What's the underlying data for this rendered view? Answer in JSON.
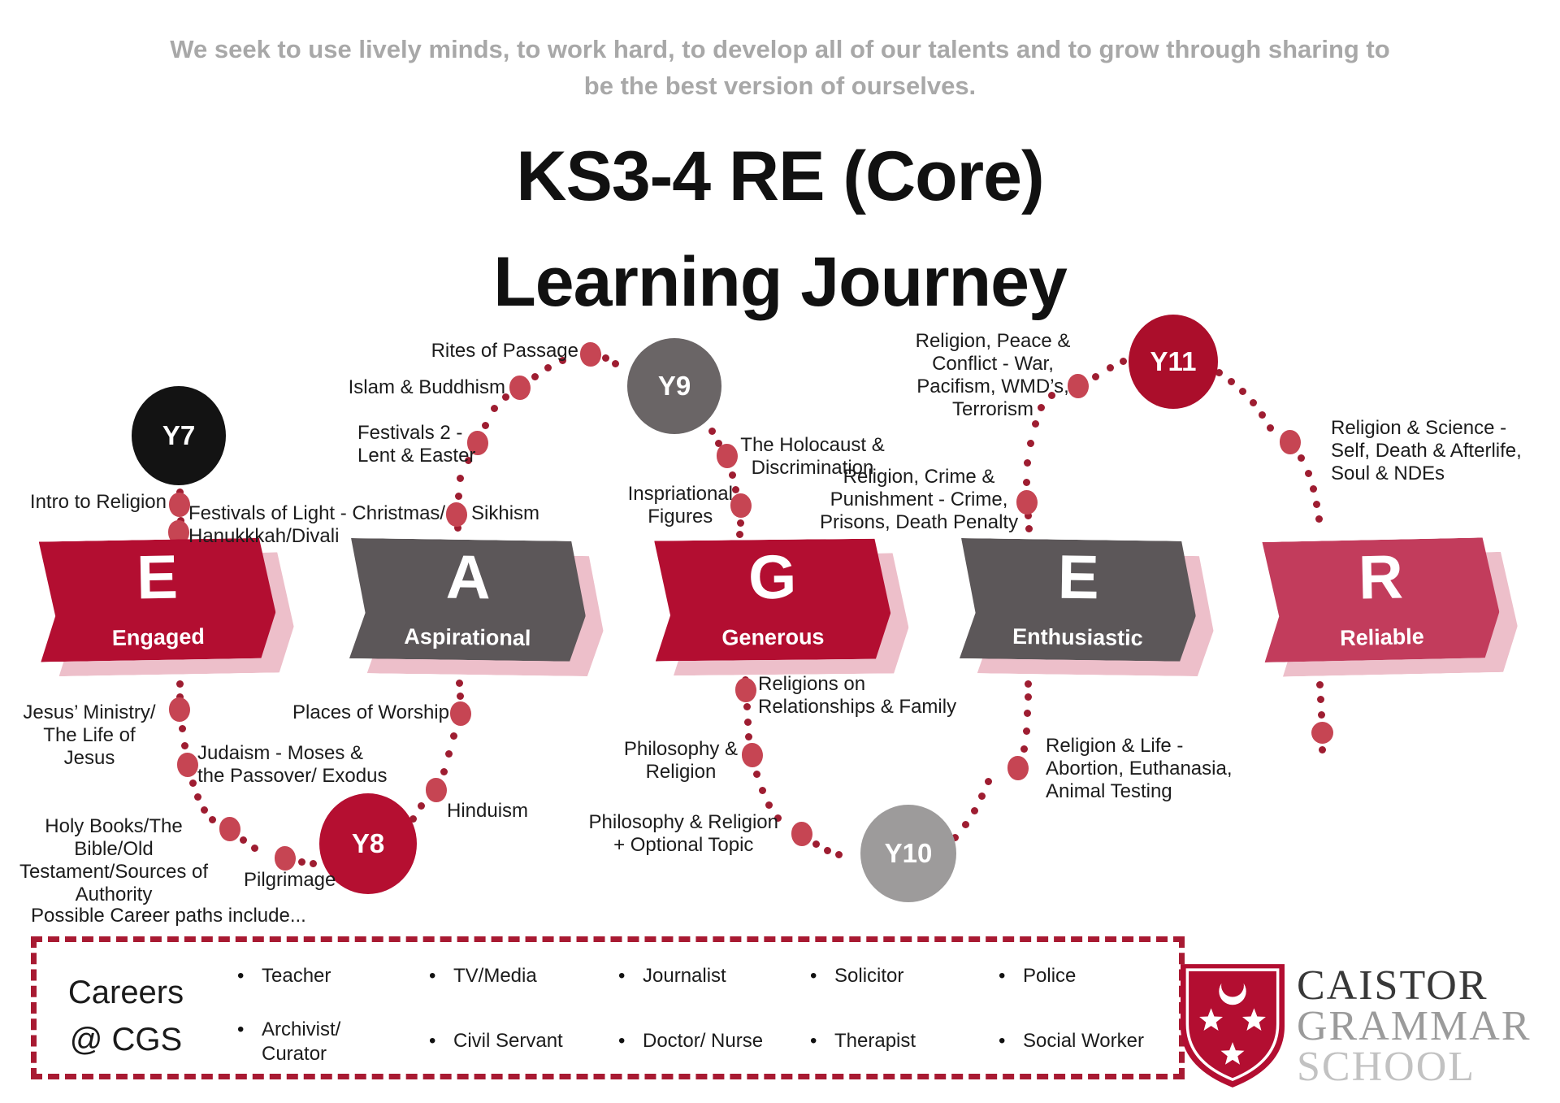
{
  "tagline": "We seek to use lively minds, to work hard, to develop all of our talents and to grow through sharing to\nbe the best version of ourselves.",
  "title": {
    "line1": "KS3-4 RE (Core)",
    "line2": "Learning Journey"
  },
  "banners": [
    {
      "letter": "E",
      "word": "Engaged"
    },
    {
      "letter": "A",
      "word": "Aspirational"
    },
    {
      "letter": "G",
      "word": "Generous"
    },
    {
      "letter": "E",
      "word": "Enthusiastic"
    },
    {
      "letter": "R",
      "word": "Reliable"
    }
  ],
  "years": [
    {
      "label": "Y7"
    },
    {
      "label": "Y8"
    },
    {
      "label": "Y9"
    },
    {
      "label": "Y10"
    },
    {
      "label": "Y11"
    }
  ],
  "journey_labels": {
    "intro": "Intro to Religion",
    "festivals_light": "Festivals of Light - Christmas/\nHanukkkah/Divali",
    "islam_buddhism": "Islam & Buddhism",
    "rites_of_passage": "Rites of Passage",
    "festivals2": "Festivals 2 -\nLent & Easter",
    "sikhism": "Sikhism",
    "holocaust": "The Holocaust &\nDiscrimination",
    "inspirational": "Inspriational\nFigures",
    "peace_conflict": "Religion, Peace &\nConflict - War,\nPacifism, WMD’s,\nTerrorism",
    "religion_science": "Religion & Science -\nSelf, Death & Afterlife,\nSoul & NDEs",
    "crime_punishment": "Religion, Crime &\nPunishment - Crime,\nPrisons, Death Penalty",
    "jesus_ministry": "Jesus’ Ministry/\nThe Life of Jesus",
    "judaism": "Judaism - Moses &\nthe Passover/ Exodus",
    "holy_books": "Holy Books/The Bible/Old\nTestament/Sources of\nAuthority",
    "pilgrimage": "Pilgrimage",
    "hinduism": "Hinduism",
    "places_of_worship": "Places of Worship",
    "relationships_family": "Religions on\nRelationships & Family",
    "philosophy_religion": "Philosophy &\nReligion",
    "philosophy_optional": "Philosophy & Religion\n+ Optional Topic",
    "religion_life": "Religion & Life -\nAbortion, Euthanasia,\nAnimal Testing"
  },
  "careers": {
    "note": "Possible Career paths include...",
    "heading": "Careers\n@ CGS",
    "items": [
      "Teacher",
      "TV/Media",
      "Journalist",
      "Solicitor",
      "Police",
      "Archivist/\nCurator",
      "Civil Servant",
      "Doctor/ Nurse",
      "Therapist",
      "Social Worker"
    ]
  },
  "logo": {
    "line1": "CAISTOR",
    "line2": "GRAMMAR",
    "line3": "SCHOOL"
  },
  "colors": {
    "crimson": "#b30e31",
    "dark_gray": "#5c5759",
    "rose": "#c23c5c",
    "shadow_pink": "#edbfca",
    "dot_small": "#9e1d31",
    "dot_big": "#c64553",
    "black_circle": "#131313",
    "y9_gray": "#6a6566",
    "y10_gray": "#9d9b9b",
    "tagline_gray": "#a8a8a8",
    "dashed_border": "#a81a32"
  }
}
